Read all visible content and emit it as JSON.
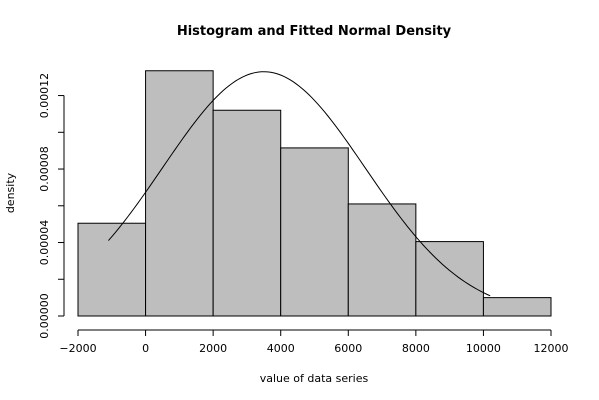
{
  "chart_data": {
    "type": "bar",
    "title": "Histogram and Fitted Normal Density",
    "xlabel": "value of data series",
    "ylabel": "density",
    "xlim": [
      -2000,
      12000
    ],
    "ylim": [
      0,
      0.000135
    ],
    "x_ticks": [
      -2000,
      0,
      2000,
      4000,
      6000,
      8000,
      10000,
      12000
    ],
    "x_tick_labels": [
      "−2000",
      "0",
      "2000",
      "4000",
      "6000",
      "8000",
      "10000",
      "12000"
    ],
    "y_ticks": [
      0,
      2e-05,
      4e-05,
      6e-05,
      8e-05,
      0.0001,
      0.00012
    ],
    "y_tick_labels": [
      "0.00000",
      "",
      "0.00004",
      "",
      "0.00008",
      "",
      "0.00012"
    ],
    "bins": [
      {
        "from": -2000,
        "to": 0,
        "density": 5.05e-05
      },
      {
        "from": 0,
        "to": 2000,
        "density": 0.0001335
      },
      {
        "from": 2000,
        "to": 4000,
        "density": 0.000112
      },
      {
        "from": 4000,
        "to": 6000,
        "density": 9.15e-05
      },
      {
        "from": 6000,
        "to": 8000,
        "density": 6.1e-05
      },
      {
        "from": 8000,
        "to": 10000,
        "density": 4.05e-05
      },
      {
        "from": 10000,
        "to": 12000,
        "density": 1e-05
      }
    ],
    "fitted_normal": {
      "mean": 3500,
      "sd": 3000,
      "x_range": [
        -1100,
        10200
      ]
    },
    "grid": false,
    "legend": "none"
  }
}
